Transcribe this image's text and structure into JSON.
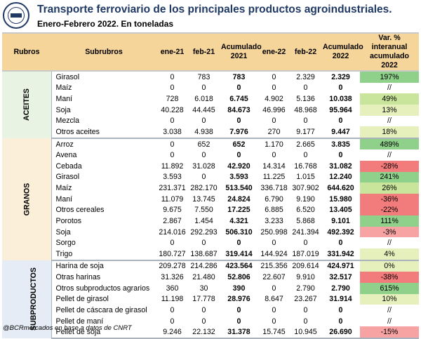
{
  "header": {
    "title": "Transporte ferroviario de los principales productos agroindustriales.",
    "subtitle": "Enero-Febrero 2022. En toneladas"
  },
  "columns": {
    "rubros": "Rubros",
    "subrubros": "Subrubros",
    "ene21": "ene-21",
    "feb21": "feb-21",
    "acum21_line1": "Acumulado",
    "acum21_line2": "2021",
    "ene22": "ene-22",
    "feb22": "feb-22",
    "acum22_line1": "Acumulado",
    "acum22_line2": "2022",
    "var_line1": "Var. % interanual",
    "var_line2": "acumulado 2022"
  },
  "groups": {
    "aceites": "ACEITES",
    "granos": "GRANOS",
    "subproductos": "SUBPRODUCTOS"
  },
  "rows": [
    {
      "sub": "Girasol",
      "ene21": "0",
      "feb21": "783",
      "acum21": "783",
      "ene22": "0",
      "feb22": "2.329",
      "acum22": "2.329",
      "var": "197%",
      "color": "pos"
    },
    {
      "sub": "Maíz",
      "ene21": "0",
      "feb21": "0",
      "acum21": "0",
      "ene22": "0",
      "feb22": "0",
      "acum22": "0",
      "var": "//",
      "color": "zero"
    },
    {
      "sub": "Maní",
      "ene21": "728",
      "feb21": "6.018",
      "acum21": "6.745",
      "ene22": "4.902",
      "feb22": "5.136",
      "acum22": "10.038",
      "var": "49%",
      "color": "mid"
    },
    {
      "sub": "Soja",
      "ene21": "40.228",
      "feb21": "44.445",
      "acum21": "84.673",
      "ene22": "46.996",
      "feb22": "48.968",
      "acum22": "95.964",
      "var": "13%",
      "color": "pale"
    },
    {
      "sub": "Mezcla",
      "ene21": "0",
      "feb21": "0",
      "acum21": "0",
      "ene22": "0",
      "feb22": "0",
      "acum22": "0",
      "var": "//",
      "color": "zero"
    },
    {
      "sub": "Otros aceites",
      "ene21": "3.038",
      "feb21": "4.938",
      "acum21": "7.976",
      "ene22": "270",
      "feb22": "9.177",
      "acum22": "9.447",
      "var": "18%",
      "color": "pale"
    },
    {
      "sub": "Arroz",
      "ene21": "0",
      "feb21": "652",
      "acum21": "652",
      "ene22": "1.170",
      "feb22": "2.665",
      "acum22": "3.835",
      "var": "489%",
      "color": "pos"
    },
    {
      "sub": "Avena",
      "ene21": "0",
      "feb21": "0",
      "acum21": "0",
      "ene22": "0",
      "feb22": "0",
      "acum22": "0",
      "var": "//",
      "color": "zero"
    },
    {
      "sub": "Cebada",
      "ene21": "11.892",
      "feb21": "31.028",
      "acum21": "42.920",
      "ene22": "14.314",
      "feb22": "16.768",
      "acum22": "31.082",
      "var": "-28%",
      "color": "neg"
    },
    {
      "sub": "Girasol",
      "ene21": "3.593",
      "feb21": "0",
      "acum21": "3.593",
      "ene22": "11.225",
      "feb22": "1.015",
      "acum22": "12.240",
      "var": "241%",
      "color": "pos"
    },
    {
      "sub": "Maíz",
      "ene21": "231.371",
      "feb21": "282.170",
      "acum21": "513.540",
      "ene22": "336.718",
      "feb22": "307.902",
      "acum22": "644.620",
      "var": "26%",
      "color": "mid"
    },
    {
      "sub": "Maní",
      "ene21": "11.079",
      "feb21": "13.745",
      "acum21": "24.824",
      "ene22": "6.790",
      "feb22": "9.190",
      "acum22": "15.980",
      "var": "-36%",
      "color": "neg"
    },
    {
      "sub": "Otros cereales",
      "ene21": "9.675",
      "feb21": "7.550",
      "acum21": "17.225",
      "ene22": "6.885",
      "feb22": "6.520",
      "acum22": "13.405",
      "var": "-22%",
      "color": "neg"
    },
    {
      "sub": "Porotos",
      "ene21": "2.867",
      "feb21": "1.454",
      "acum21": "4.321",
      "ene22": "3.233",
      "feb22": "5.868",
      "acum22": "9.101",
      "var": "111%",
      "color": "pos"
    },
    {
      "sub": "Soja",
      "ene21": "214.016",
      "feb21": "292.293",
      "acum21": "506.310",
      "ene22": "250.998",
      "feb22": "241.394",
      "acum22": "492.392",
      "var": "-3%",
      "color": "nred"
    },
    {
      "sub": "Sorgo",
      "ene21": "0",
      "feb21": "0",
      "acum21": "0",
      "ene22": "0",
      "feb22": "0",
      "acum22": "0",
      "var": "//",
      "color": "zero"
    },
    {
      "sub": "Trigo",
      "ene21": "180.727",
      "feb21": "138.687",
      "acum21": "319.414",
      "ene22": "144.924",
      "feb22": "187.019",
      "acum22": "331.942",
      "var": "4%",
      "color": "pale"
    },
    {
      "sub": "Harina de soja",
      "ene21": "209.278",
      "feb21": "214.286",
      "acum21": "423.564",
      "ene22": "215.356",
      "feb22": "209.614",
      "acum22": "424.971",
      "var": "0%",
      "color": "pale"
    },
    {
      "sub": "Otras harinas",
      "ene21": "31.326",
      "feb21": "21.480",
      "acum21": "52.806",
      "ene22": "22.607",
      "feb22": "9.910",
      "acum22": "32.517",
      "var": "-38%",
      "color": "neg"
    },
    {
      "sub": "Otros subproductos agrarios",
      "ene21": "360",
      "feb21": "30",
      "acum21": "390",
      "ene22": "0",
      "feb22": "2.790",
      "acum22": "2.790",
      "var": "615%",
      "color": "pos"
    },
    {
      "sub": "Pellet de girasol",
      "ene21": "11.198",
      "feb21": "17.778",
      "acum21": "28.976",
      "ene22": "8.647",
      "feb22": "23.267",
      "acum22": "31.914",
      "var": "10%",
      "color": "pale"
    },
    {
      "sub": "Pellet de cáscara de girasol",
      "ene21": "0",
      "feb21": "0",
      "acum21": "0",
      "ene22": "0",
      "feb22": "0",
      "acum22": "0",
      "var": "//",
      "color": "zero"
    },
    {
      "sub": "Pellet de maní",
      "ene21": "0",
      "feb21": "0",
      "acum21": "0",
      "ene22": "0",
      "feb22": "0",
      "acum22": "0",
      "var": "//",
      "color": "zero"
    },
    {
      "sub": "Pellet de soja",
      "ene21": "9.246",
      "feb21": "22.132",
      "acum21": "31.378",
      "ene22": "15.745",
      "feb22": "10.945",
      "acum22": "26.690",
      "var": "-15%",
      "color": "nred"
    }
  ],
  "footer": "@BCRmercados en base a datos de CNRT",
  "colors": {
    "title": "#1f3864",
    "header_bg": "#f6d59a",
    "positive": "#8fd18a",
    "negative": "#f27b7b"
  }
}
